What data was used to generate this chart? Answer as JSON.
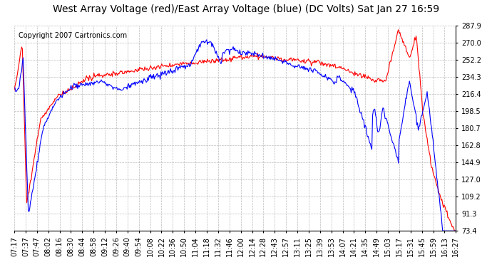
{
  "title": "West Array Voltage (red)/East Array Voltage (blue) (DC Volts) Sat Jan 27 16:59",
  "copyright": "Copyright 2007 Cartronics.com",
  "background_color": "#ffffff",
  "plot_bg_color": "#ffffff",
  "grid_color": "#aaaaaa",
  "red_color": "#ff0000",
  "blue_color": "#0000ff",
  "yticks": [
    73.4,
    91.3,
    109.2,
    127.0,
    144.9,
    162.8,
    180.7,
    198.5,
    216.4,
    234.3,
    252.2,
    270.0,
    287.9
  ],
  "ymin": 73.4,
  "ymax": 287.9,
  "xtick_labels": [
    "07:17",
    "07:37",
    "07:47",
    "08:02",
    "08:16",
    "08:30",
    "08:44",
    "08:58",
    "09:12",
    "09:26",
    "09:40",
    "09:54",
    "10:08",
    "10:22",
    "10:36",
    "10:50",
    "11:04",
    "11:18",
    "11:32",
    "11:46",
    "12:00",
    "12:14",
    "12:28",
    "12:43",
    "12:57",
    "13:11",
    "13:25",
    "13:39",
    "13:53",
    "14:07",
    "14:21",
    "14:35",
    "14:49",
    "15:03",
    "15:17",
    "15:31",
    "15:45",
    "15:59",
    "16:13",
    "16:27"
  ],
  "title_fontsize": 10,
  "copyright_fontsize": 7,
  "tick_fontsize": 7,
  "line_width": 0.8
}
